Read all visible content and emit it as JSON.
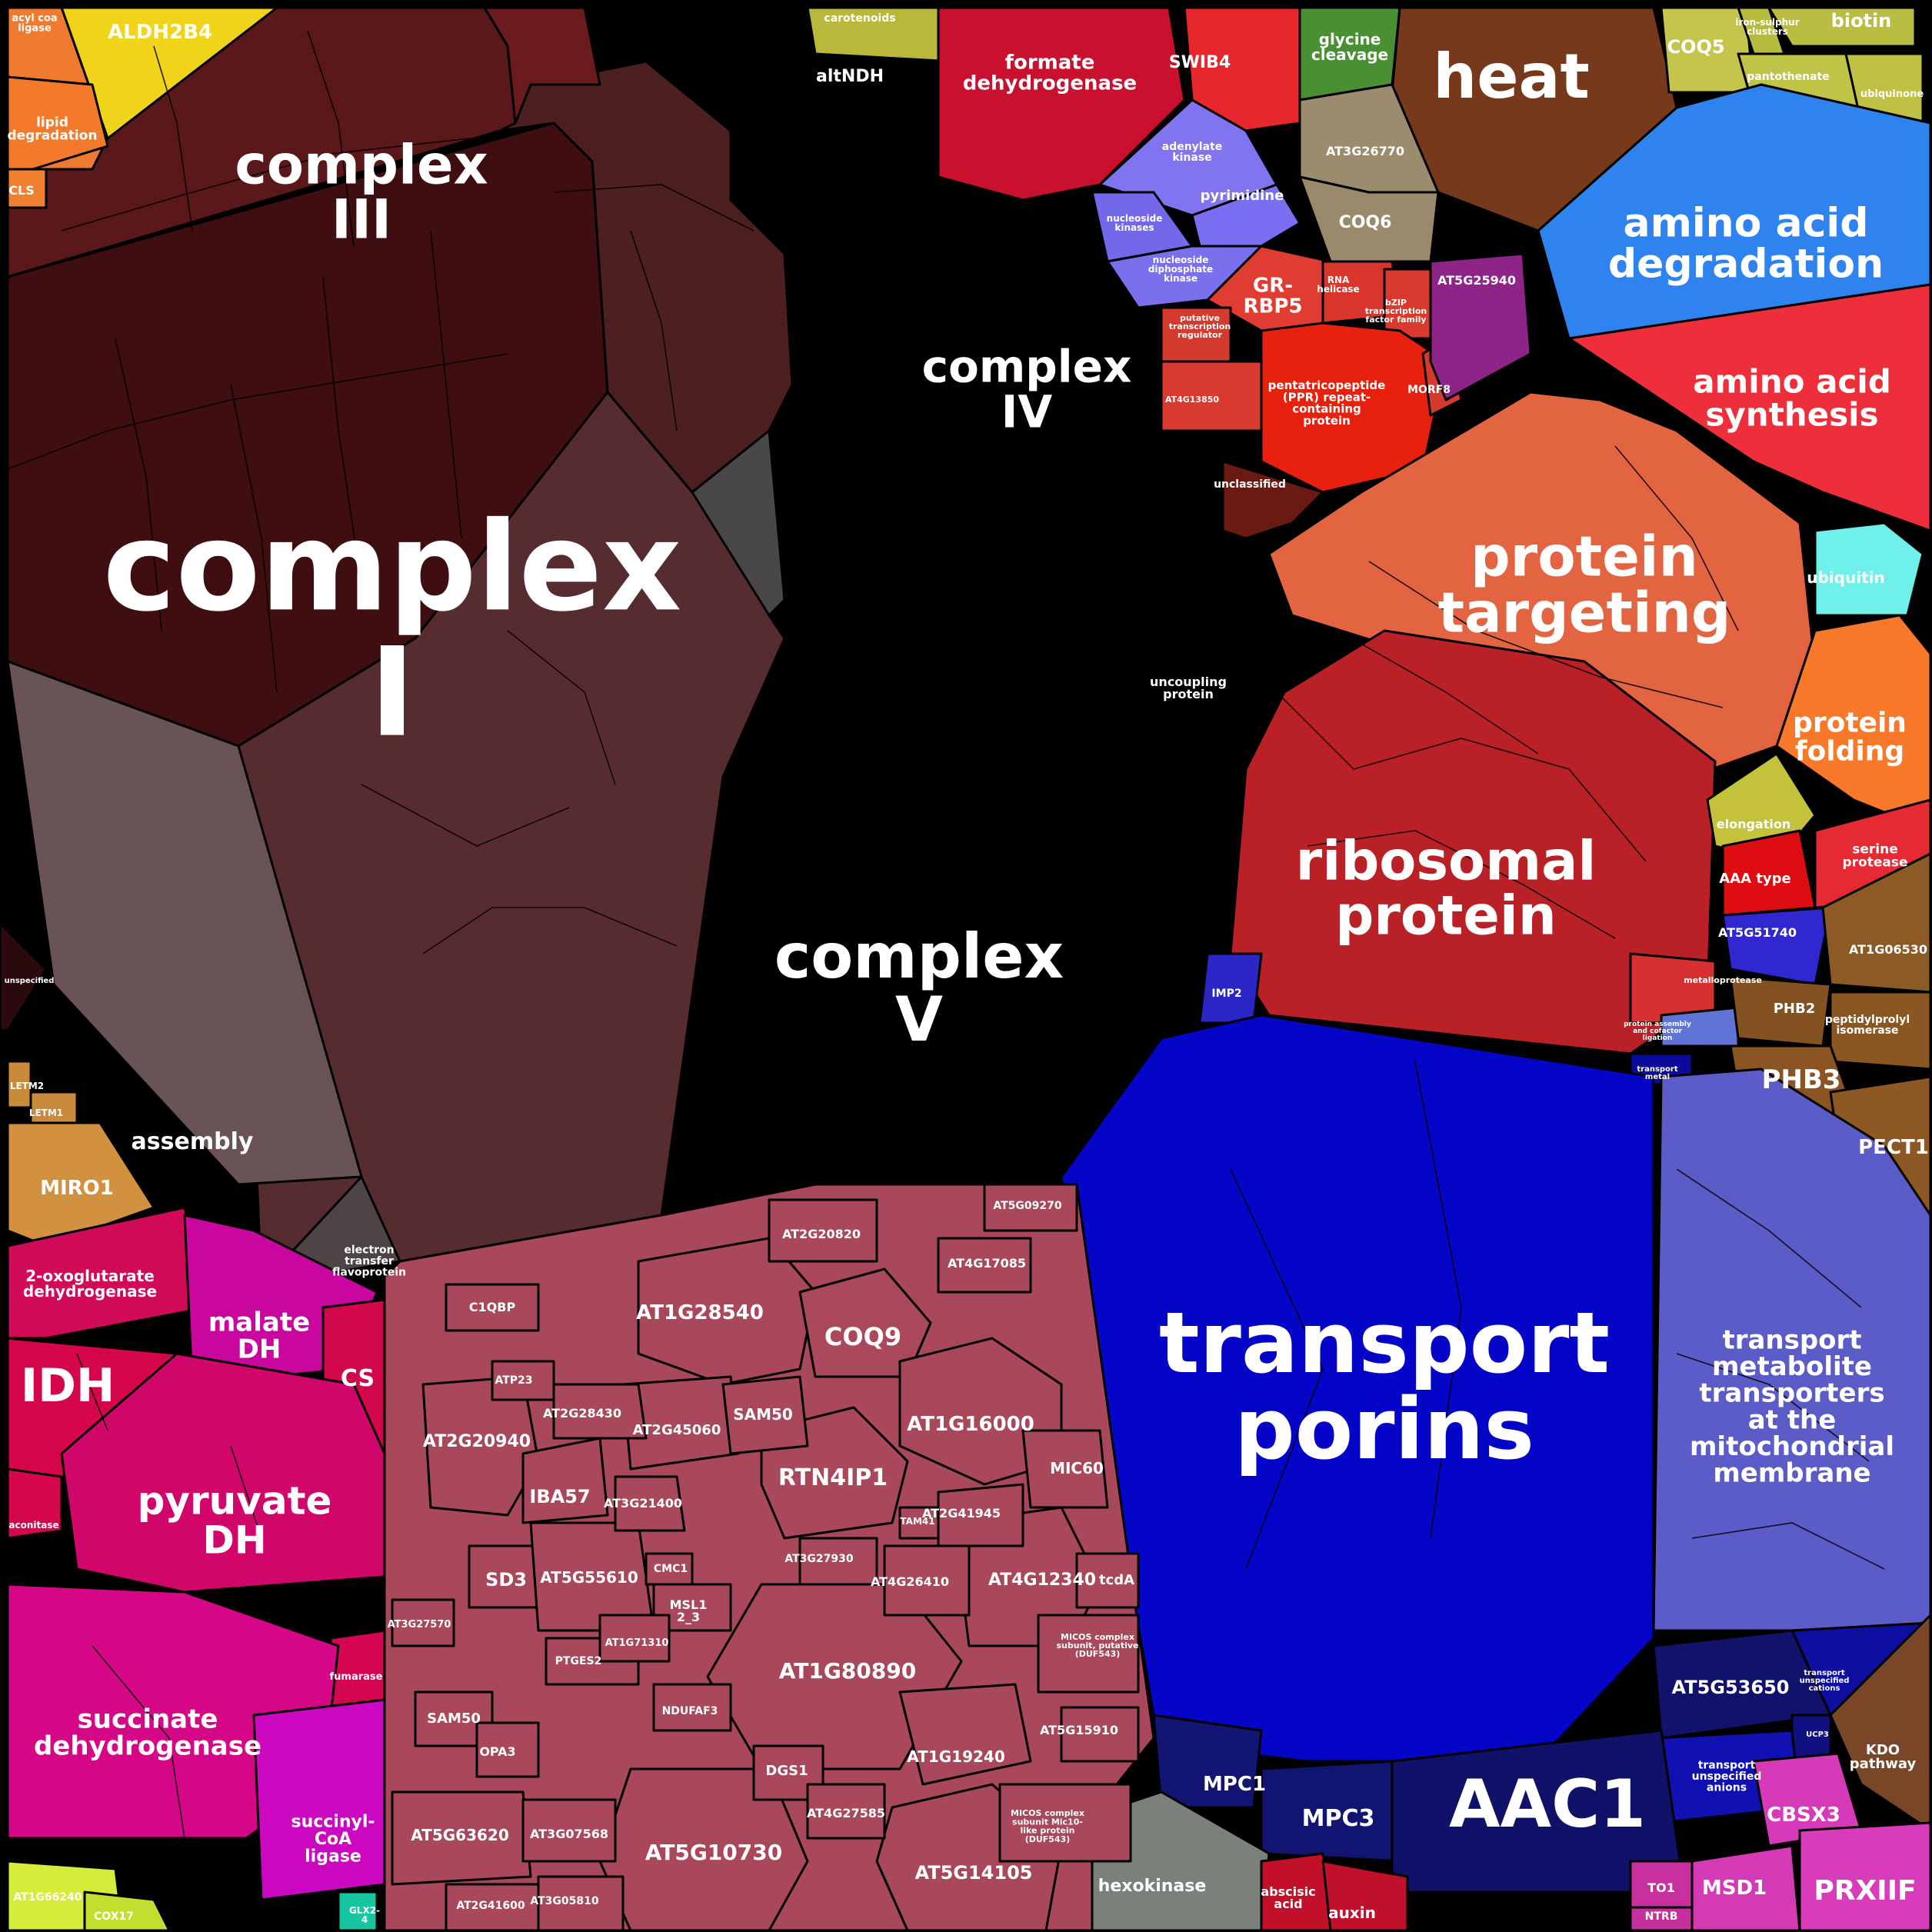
{
  "cells": [
    {
      "id": "complex-i",
      "label": [
        "complex",
        "I"
      ],
      "color": "#3f0e10"
    },
    {
      "id": "complex-iii",
      "label": [
        "complex",
        "III"
      ],
      "color": "#5a181b"
    },
    {
      "id": "complex-iv",
      "label": [
        "complex",
        "IV"
      ],
      "color": "#4c1f20"
    },
    {
      "id": "complex-v",
      "label": [
        "complex",
        "V"
      ],
      "color": "#562c30"
    },
    {
      "id": "assembly",
      "label": [
        "assembly"
      ],
      "color": "#6a5355"
    },
    {
      "id": "electron-transfer-flavoprotein",
      "label": [
        "electron",
        "transfer",
        "flavoprotein"
      ],
      "color": "#4d4446"
    },
    {
      "id": "altndh",
      "label": [
        "altNDH"
      ],
      "color": "#6b1a1e"
    },
    {
      "id": "uncoupling-protein",
      "label": [
        "uncoupling",
        "protein"
      ],
      "color": "#4a4749"
    },
    {
      "id": "unspecified-left",
      "label": [
        "unspecified"
      ],
      "color": "#2a0a0c"
    },
    {
      "id": "aldh2b4",
      "label": [
        "ALDH2B4"
      ],
      "color": "#efd41a"
    },
    {
      "id": "acyl-coa-ligase",
      "label": [
        "acyl coa",
        "ligase"
      ],
      "color": "#f07b2f"
    },
    {
      "id": "lipid-degradation",
      "label": [
        "lipid",
        "degradation"
      ],
      "color": "#f37a2a"
    },
    {
      "id": "cls",
      "label": [
        "CLS"
      ],
      "color": "#f08030"
    },
    {
      "id": "letm2",
      "label": [
        "LETM2"
      ],
      "color": "#c98a3a"
    },
    {
      "id": "letm1",
      "label": [
        "LETM1"
      ],
      "color": "#c98a3a"
    },
    {
      "id": "miro1",
      "label": [
        "MIRO1"
      ],
      "color": "#d1913f"
    },
    {
      "id": "carotenoids",
      "label": [
        "carotenoids"
      ],
      "color": "#b9b83a"
    },
    {
      "id": "formate-dehydrogenase",
      "label": [
        "formate",
        "dehydrogenase"
      ],
      "color": "#c9102e"
    },
    {
      "id": "swib4",
      "label": [
        "SWIB4"
      ],
      "color": "#e8262e"
    },
    {
      "id": "glycine-cleavage",
      "label": [
        "glycine",
        "cleavage"
      ],
      "color": "#4a8f34"
    },
    {
      "id": "heat",
      "label": [
        "heat"
      ],
      "color": "#77391c"
    },
    {
      "id": "coq5",
      "label": [
        "COQ5"
      ],
      "color": "#c3c64a"
    },
    {
      "id": "biotin",
      "label": [
        "biotin"
      ],
      "color": "#b9bd42"
    },
    {
      "id": "iron-sulfur-clusters",
      "label": [
        "iron-sulphur",
        "clusters"
      ],
      "color": "#b7bb3d"
    },
    {
      "id": "pantothenate",
      "label": [
        "pantothenate"
      ],
      "color": "#c0c446"
    },
    {
      "id": "ubiquinone",
      "label": [
        "ubiquinone"
      ],
      "color": "#bec142"
    },
    {
      "id": "adenylate-kinase",
      "label": [
        "adenylate",
        "kinase"
      ],
      "color": "#8074f0"
    },
    {
      "id": "pyrimidine",
      "label": [
        "pyrimidine"
      ],
      "color": "#7a6ef2"
    },
    {
      "id": "nucleoside-kinases",
      "label": [
        "nucleoside",
        "kinases"
      ],
      "color": "#7468ea"
    },
    {
      "id": "nucleoside-diphosphate-kinase",
      "label": [
        "nucleoside",
        "diphosphate",
        "kinase"
      ],
      "color": "#7a70ee"
    },
    {
      "id": "at3g26770",
      "label": [
        "AT3G26770"
      ],
      "color": "#9c8c6e"
    },
    {
      "id": "coq6",
      "label": [
        "COQ6"
      ],
      "color": "#9a8a6b"
    },
    {
      "id": "gr-rbp5",
      "label": [
        "GR-",
        "RBP5"
      ],
      "color": "#e03c32"
    },
    {
      "id": "rna-helicase",
      "label": [
        "RNA",
        "helicase"
      ],
      "color": "#d8362c"
    },
    {
      "id": "bzip-transcription-factor-family",
      "label": [
        "bZIP",
        "transcription",
        "factor family"
      ],
      "color": "#da3a2e"
    },
    {
      "id": "putative-transcription-regulator",
      "label": [
        "putative",
        "transcription",
        "regulator"
      ],
      "color": "#d53a2f"
    },
    {
      "id": "at4g13850",
      "label": [
        "AT4G13850"
      ],
      "color": "#d83a30"
    },
    {
      "id": "ppr-protein",
      "label": [
        "pentatricopeptide",
        "(PPR) repeat-",
        "containing",
        "protein"
      ],
      "color": "#e8210f"
    },
    {
      "id": "morf8",
      "label": [
        "MORF8"
      ],
      "color": "#d63a2e"
    },
    {
      "id": "at5g25940",
      "label": [
        "AT5G25940"
      ],
      "color": "#8e2488"
    },
    {
      "id": "unclassified",
      "label": [
        "unclassified"
      ],
      "color": "#6a1a10"
    },
    {
      "id": "amino-acid-degradation",
      "label": [
        "amino acid",
        "degradation"
      ],
      "color": "#2f83ee"
    },
    {
      "id": "amino-acid-synthesis",
      "label": [
        "amino acid",
        "synthesis"
      ],
      "color": "#ee2e3a"
    },
    {
      "id": "protein-targeting",
      "label": [
        "protein",
        "targeting"
      ],
      "color": "#e36440"
    },
    {
      "id": "ubiquitin",
      "label": [
        "ubiquitin"
      ],
      "color": "#6ff0ea"
    },
    {
      "id": "protein-folding",
      "label": [
        "protein",
        "folding"
      ],
      "color": "#f87929"
    },
    {
      "id": "ribosomal-protein",
      "label": [
        "ribosomal",
        "protein"
      ],
      "color": "#ba2127"
    },
    {
      "id": "elongation",
      "label": [
        "elongation"
      ],
      "color": "#c4c23a"
    },
    {
      "id": "aaa-type",
      "label": [
        "AAA type"
      ],
      "color": "#de0d12"
    },
    {
      "id": "serine-protease",
      "label": [
        "serine",
        "protease"
      ],
      "color": "#e62a33"
    },
    {
      "id": "at5g51740",
      "label": [
        "AT5G51740"
      ],
      "color": "#3027d0"
    },
    {
      "id": "metalloprotease",
      "label": [
        "metalloprotease"
      ],
      "color": "#d73030"
    },
    {
      "id": "protein-assembly",
      "label": [
        "protein assembly",
        "and cofactor",
        "ligation"
      ],
      "color": "#5f74d4"
    },
    {
      "id": "imp2",
      "label": [
        "IMP2"
      ],
      "color": "#2a26c6"
    },
    {
      "id": "transport-metal",
      "label": [
        "transport",
        "metal"
      ],
      "color": "#0b0a9a"
    },
    {
      "id": "at1g06530",
      "label": [
        "AT1G06530"
      ],
      "color": "#8c5a24"
    },
    {
      "id": "phb2",
      "label": [
        "PHB2"
      ],
      "color": "#845120"
    },
    {
      "id": "peptidylprolyl-isomerase",
      "label": [
        "peptidylprolyl",
        "isomerase"
      ],
      "color": "#8a5622"
    },
    {
      "id": "phb3",
      "label": [
        "PHB3"
      ],
      "color": "#8a5522"
    },
    {
      "id": "pect1",
      "label": [
        "PECT1"
      ],
      "color": "#8d5823"
    },
    {
      "id": "transport-porins",
      "label": [
        "transport",
        "porins"
      ],
      "color": "#0505c7"
    },
    {
      "id": "transport-metabolite-transporters",
      "label": [
        "transport",
        "metabolite",
        "transporters",
        "at the",
        "mitochondrial",
        "membrane"
      ],
      "color": "#5c5cc8"
    },
    {
      "id": "at5g53650",
      "label": [
        "AT5G53650"
      ],
      "color": "#10126b"
    },
    {
      "id": "transport-unspecified-cations",
      "label": [
        "transport",
        "unspecified",
        "cations"
      ],
      "color": "#0e0ea0"
    },
    {
      "id": "ucp3",
      "label": [
        "UCP3"
      ],
      "color": "#101080"
    },
    {
      "id": "transport-unspecified-anions",
      "label": [
        "transport",
        "unspecified",
        "anions"
      ],
      "color": "#1010b3"
    },
    {
      "id": "kdo-pathway",
      "label": [
        "KDO",
        "pathway"
      ],
      "color": "#7a4628"
    },
    {
      "id": "mpc1",
      "label": [
        "MPC1"
      ],
      "color": "#121573"
    },
    {
      "id": "mpc3",
      "label": [
        "MPC3"
      ],
      "color": "#111470"
    },
    {
      "id": "aac1",
      "label": [
        "AAC1"
      ],
      "color": "#0f1268"
    },
    {
      "id": "cbsx3",
      "label": [
        "CBSX3"
      ],
      "color": "#d63ab8"
    },
    {
      "id": "msd1",
      "label": [
        "MSD1"
      ],
      "color": "#d33ab3"
    },
    {
      "id": "prxiif",
      "label": [
        "PRXIIF"
      ],
      "color": "#d83cbb"
    },
    {
      "id": "to1",
      "label": [
        "TO1"
      ],
      "color": "#c9309f"
    },
    {
      "id": "ntrb",
      "label": [
        "NTRB"
      ],
      "color": "#c5309c"
    },
    {
      "id": "hexokinase",
      "label": [
        "hexokinase"
      ],
      "color": "#7a817a"
    },
    {
      "id": "abscisic-acid",
      "label": [
        "abscisic",
        "acid"
      ],
      "color": "#c3102a"
    },
    {
      "id": "auxin",
      "label": [
        "auxin"
      ],
      "color": "#c0102c"
    },
    {
      "id": "2-oxoglutarate-dehydrogenase",
      "label": [
        "2-oxoglutarate",
        "dehydrogenase"
      ],
      "color": "#d10a57"
    },
    {
      "id": "malate-dh",
      "label": [
        "malate",
        "DH"
      ],
      "color": "#c9069e"
    },
    {
      "id": "idh",
      "label": [
        "IDH"
      ],
      "color": "#d4054a"
    },
    {
      "id": "cs",
      "label": [
        "CS"
      ],
      "color": "#d2064a"
    },
    {
      "id": "pyruvate-dh",
      "label": [
        "pyruvate",
        "DH"
      ],
      "color": "#d1066a"
    },
    {
      "id": "aconitase",
      "label": [
        "aconitase"
      ],
      "color": "#d4064d"
    },
    {
      "id": "fumarase",
      "label": [
        "fumarase"
      ],
      "color": "#d4064f"
    },
    {
      "id": "succinate-dehydrogenase",
      "label": [
        "succinate",
        "dehydrogenase"
      ],
      "color": "#d60787"
    },
    {
      "id": "succinyl-coa-ligase",
      "label": [
        "succinyl-",
        "CoA",
        "ligase"
      ],
      "color": "#cb08c0"
    },
    {
      "id": "at1g66240",
      "label": [
        "AT1G66240"
      ],
      "color": "#d5ec3a"
    },
    {
      "id": "cox17",
      "label": [
        "COX17"
      ],
      "color": "#c4de30"
    },
    {
      "id": "glx2",
      "label": [
        "GLX2-",
        "4"
      ],
      "color": "#17c6a0"
    },
    {
      "id": "misc",
      "label": [],
      "color": "#a8485a"
    },
    {
      "id": "at1g28540",
      "label": [
        "AT1G28540"
      ],
      "color": "#a8485a"
    },
    {
      "id": "coq9",
      "label": [
        "COQ9"
      ],
      "color": "#a9495b"
    },
    {
      "id": "at1g16000",
      "label": [
        "AT1G16000"
      ],
      "color": "#a8485a"
    },
    {
      "id": "rtn4ip1",
      "label": [
        "RTN4IP1"
      ],
      "color": "#a8485a"
    },
    {
      "id": "at2g20940",
      "label": [
        "AT2G20940"
      ],
      "color": "#a8485a"
    },
    {
      "id": "iba57",
      "label": [
        "IBA57"
      ],
      "color": "#a8485a"
    },
    {
      "id": "at2g45060",
      "label": [
        "AT2G45060"
      ],
      "color": "#a8485a"
    },
    {
      "id": "sam50a",
      "label": [
        "SAM50"
      ],
      "color": "#a8485a"
    },
    {
      "id": "at1g80890",
      "label": [
        "AT1G80890"
      ],
      "color": "#a8485a"
    },
    {
      "id": "at5g10730",
      "label": [
        "AT5G10730"
      ],
      "color": "#a8485a"
    },
    {
      "id": "at5g14105",
      "label": [
        "AT5G14105"
      ],
      "color": "#a8485a"
    },
    {
      "id": "at5g63620",
      "label": [
        "AT5G63620"
      ],
      "color": "#a8485a"
    },
    {
      "id": "sd3",
      "label": [
        "SD3"
      ],
      "color": "#a8485a"
    },
    {
      "id": "at5g55610",
      "label": [
        "AT5G55610"
      ],
      "color": "#a8485a"
    },
    {
      "id": "at4g12340",
      "label": [
        "AT4G12340"
      ],
      "color": "#a8485a"
    },
    {
      "id": "at1g19240",
      "label": [
        "AT1G19240"
      ],
      "color": "#a8485a"
    },
    {
      "id": "mic60",
      "label": [
        "MIC60"
      ],
      "color": "#a8485a"
    },
    {
      "id": "at2g28430",
      "label": [
        "AT2G28430"
      ],
      "color": "#a8485a"
    },
    {
      "id": "at3g21400",
      "label": [
        "AT3G21400"
      ],
      "color": "#a8485a"
    },
    {
      "id": "at4g26410",
      "label": [
        "AT4G26410"
      ],
      "color": "#a8485a"
    },
    {
      "id": "at2g41945",
      "label": [
        "AT2G41945"
      ],
      "color": "#a8485a"
    },
    {
      "id": "at3g27930",
      "label": [
        "AT3G27930"
      ],
      "color": "#a8485a"
    },
    {
      "id": "at2g20820",
      "label": [
        "AT2G20820"
      ],
      "color": "#a8485a"
    },
    {
      "id": "at4g17085",
      "label": [
        "AT4G17085"
      ],
      "color": "#a8485a"
    },
    {
      "id": "at5g09270",
      "label": [
        "AT5G09270"
      ],
      "color": "#a8485a"
    },
    {
      "id": "c1qbp",
      "label": [
        "C1QBP"
      ],
      "color": "#a8485a"
    },
    {
      "id": "atp23",
      "label": [
        "ATP23"
      ],
      "color": "#a8485a"
    },
    {
      "id": "sam50b",
      "label": [
        "SAM50"
      ],
      "color": "#a8485a"
    },
    {
      "id": "opa3",
      "label": [
        "OPA3"
      ],
      "color": "#a8485a"
    },
    {
      "id": "dgs1",
      "label": [
        "DGS1"
      ],
      "color": "#a8485a"
    },
    {
      "id": "at4g27585",
      "label": [
        "AT4G27585"
      ],
      "color": "#a8485a"
    },
    {
      "id": "at3g07568",
      "label": [
        "AT3G07568"
      ],
      "color": "#a8485a"
    },
    {
      "id": "at3g05810",
      "label": [
        "AT3G05810"
      ],
      "color": "#a8485a"
    },
    {
      "id": "at2g41600",
      "label": [
        "AT2G41600"
      ],
      "color": "#a8485a"
    },
    {
      "id": "at5g15910",
      "label": [
        "AT5G15910"
      ],
      "color": "#a8485a"
    },
    {
      "id": "tcda",
      "label": [
        "tcdA"
      ],
      "color": "#a8485a"
    },
    {
      "id": "ptges2",
      "label": [
        "PTGES2"
      ],
      "color": "#a8485a"
    },
    {
      "id": "ndufaf3",
      "label": [
        "NDUFAF3"
      ],
      "color": "#a8485a"
    },
    {
      "id": "at3g27570",
      "label": [
        "AT3G27570"
      ],
      "color": "#a8485a"
    },
    {
      "id": "msl1",
      "label": [
        "MSL1",
        "2_3"
      ],
      "color": "#a8485a"
    },
    {
      "id": "cmc1",
      "label": [
        "CMC1"
      ],
      "color": "#a8485a"
    },
    {
      "id": "tam41",
      "label": [
        "TAM41"
      ],
      "color": "#a8485a"
    },
    {
      "id": "at1g71310",
      "label": [
        "AT1G71310"
      ],
      "color": "#a8485a"
    },
    {
      "id": "micos-putative",
      "label": [
        "MICOS complex",
        "subunit, putative",
        "(DUF543)"
      ],
      "color": "#a8485a"
    },
    {
      "id": "micos-like",
      "label": [
        "MICOS complex",
        "subunit Mic10-",
        "like protein",
        "(DUF543)"
      ],
      "color": "#a8485a"
    }
  ]
}
